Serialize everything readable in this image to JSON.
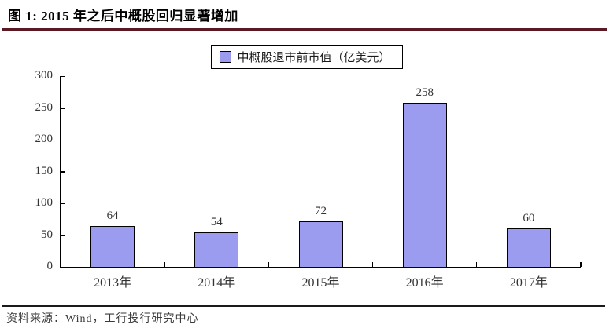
{
  "figure": {
    "title": "图 1: 2015 年之后中概股回归显著增加",
    "source": "资料来源：Wind，工行投行研究中心"
  },
  "chart_data": {
    "type": "bar",
    "title": "图 1: 2015 年之后中概股回归显著增加",
    "series_name": "中概股退市前市值（亿美元）",
    "categories": [
      "2013年",
      "2014年",
      "2015年",
      "2016年",
      "2017年"
    ],
    "values": [
      64,
      54,
      72,
      258,
      60
    ],
    "data_labels": [
      "64",
      "54",
      "72",
      "258",
      "60"
    ],
    "xlabel": "",
    "ylabel": "",
    "ylim": [
      0,
      300
    ],
    "ytick_interval": 50,
    "ytick_labels": [
      "0",
      "50",
      "100",
      "150",
      "200",
      "250",
      "300"
    ],
    "grid": false,
    "legend_position": "top-center",
    "colors": {
      "bar_fill": "#9b9bf0",
      "bar_border": "#000000",
      "title_rule": "#5b1a23",
      "axis": "#000000",
      "text": "#333333"
    }
  }
}
